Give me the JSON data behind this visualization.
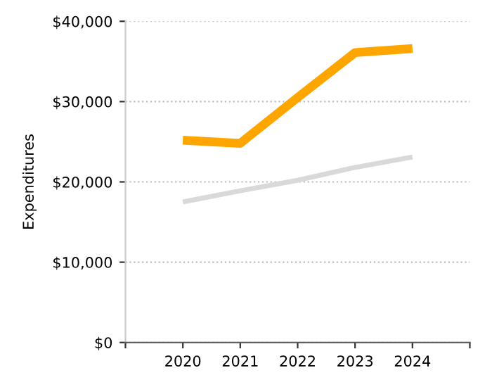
{
  "chart_data": {
    "type": "line",
    "ylabel": "Expenditures",
    "x": [
      2020,
      2021,
      2022,
      2023,
      2024
    ],
    "xlim": [
      2019,
      2025
    ],
    "xticks": [
      {
        "value": 2019,
        "label": null
      },
      2020,
      2021,
      2022,
      2023,
      2024,
      {
        "value": 2025,
        "label": null
      }
    ],
    "ylim": [
      0,
      40000
    ],
    "yticks": [
      {
        "value": 0,
        "label": "$0"
      },
      {
        "value": 10000,
        "label": "$10,000"
      },
      {
        "value": 20000,
        "label": "$20,000"
      },
      {
        "value": 30000,
        "label": "$30,000"
      },
      {
        "value": 40000,
        "label": "$40,000"
      }
    ],
    "grid": "y",
    "legend": false,
    "marker": "none",
    "line_style": "solid",
    "series": [
      {
        "color": "#ffa500",
        "values": [
          25200,
          24800,
          30500,
          36100,
          36600
        ]
      },
      {
        "color": "#d9d9d9",
        "values": [
          17500,
          18900,
          20200,
          21800,
          23100
        ]
      }
    ]
  }
}
